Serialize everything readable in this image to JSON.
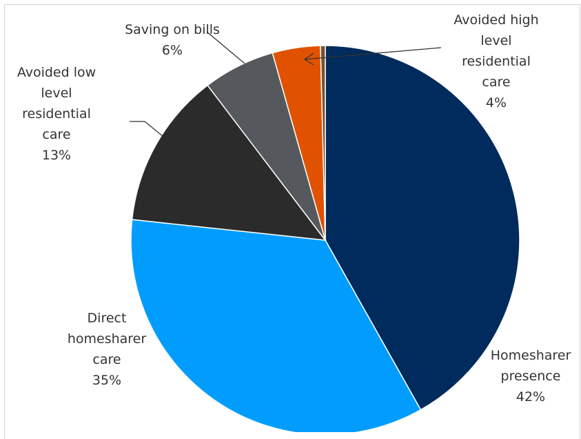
{
  "chart_data": {
    "type": "pie",
    "title": "",
    "slices": [
      {
        "name": "Homesharer presence",
        "value": 42,
        "color": "#002b5c"
      },
      {
        "name": "Direct homesharer care",
        "value": 35,
        "color": "#009dff"
      },
      {
        "name": "Avoided low level residential care",
        "value": 13,
        "color": "#2b2b2b"
      },
      {
        "name": "Saving on bills",
        "value": 6,
        "color": "#55585c"
      },
      {
        "name": "Avoided high level residential care",
        "value": 4,
        "color": "#e15200"
      },
      {
        "name": "",
        "value": 0.4,
        "color": "#7a5230"
      }
    ],
    "labels": [
      {
        "lines": [
          "Homesharer",
          "presence"
        ],
        "pct": "42%"
      },
      {
        "lines": [
          "Direct",
          "homesharer",
          "care"
        ],
        "pct": "35%"
      },
      {
        "lines": [
          "Avoided low",
          "level",
          "residential",
          "care"
        ],
        "pct": "13%"
      },
      {
        "lines": [
          "Saving on bills"
        ],
        "pct": "6%"
      },
      {
        "lines": [
          "Avoided high",
          "level",
          "residential",
          "care"
        ],
        "pct": "4%"
      }
    ]
  }
}
